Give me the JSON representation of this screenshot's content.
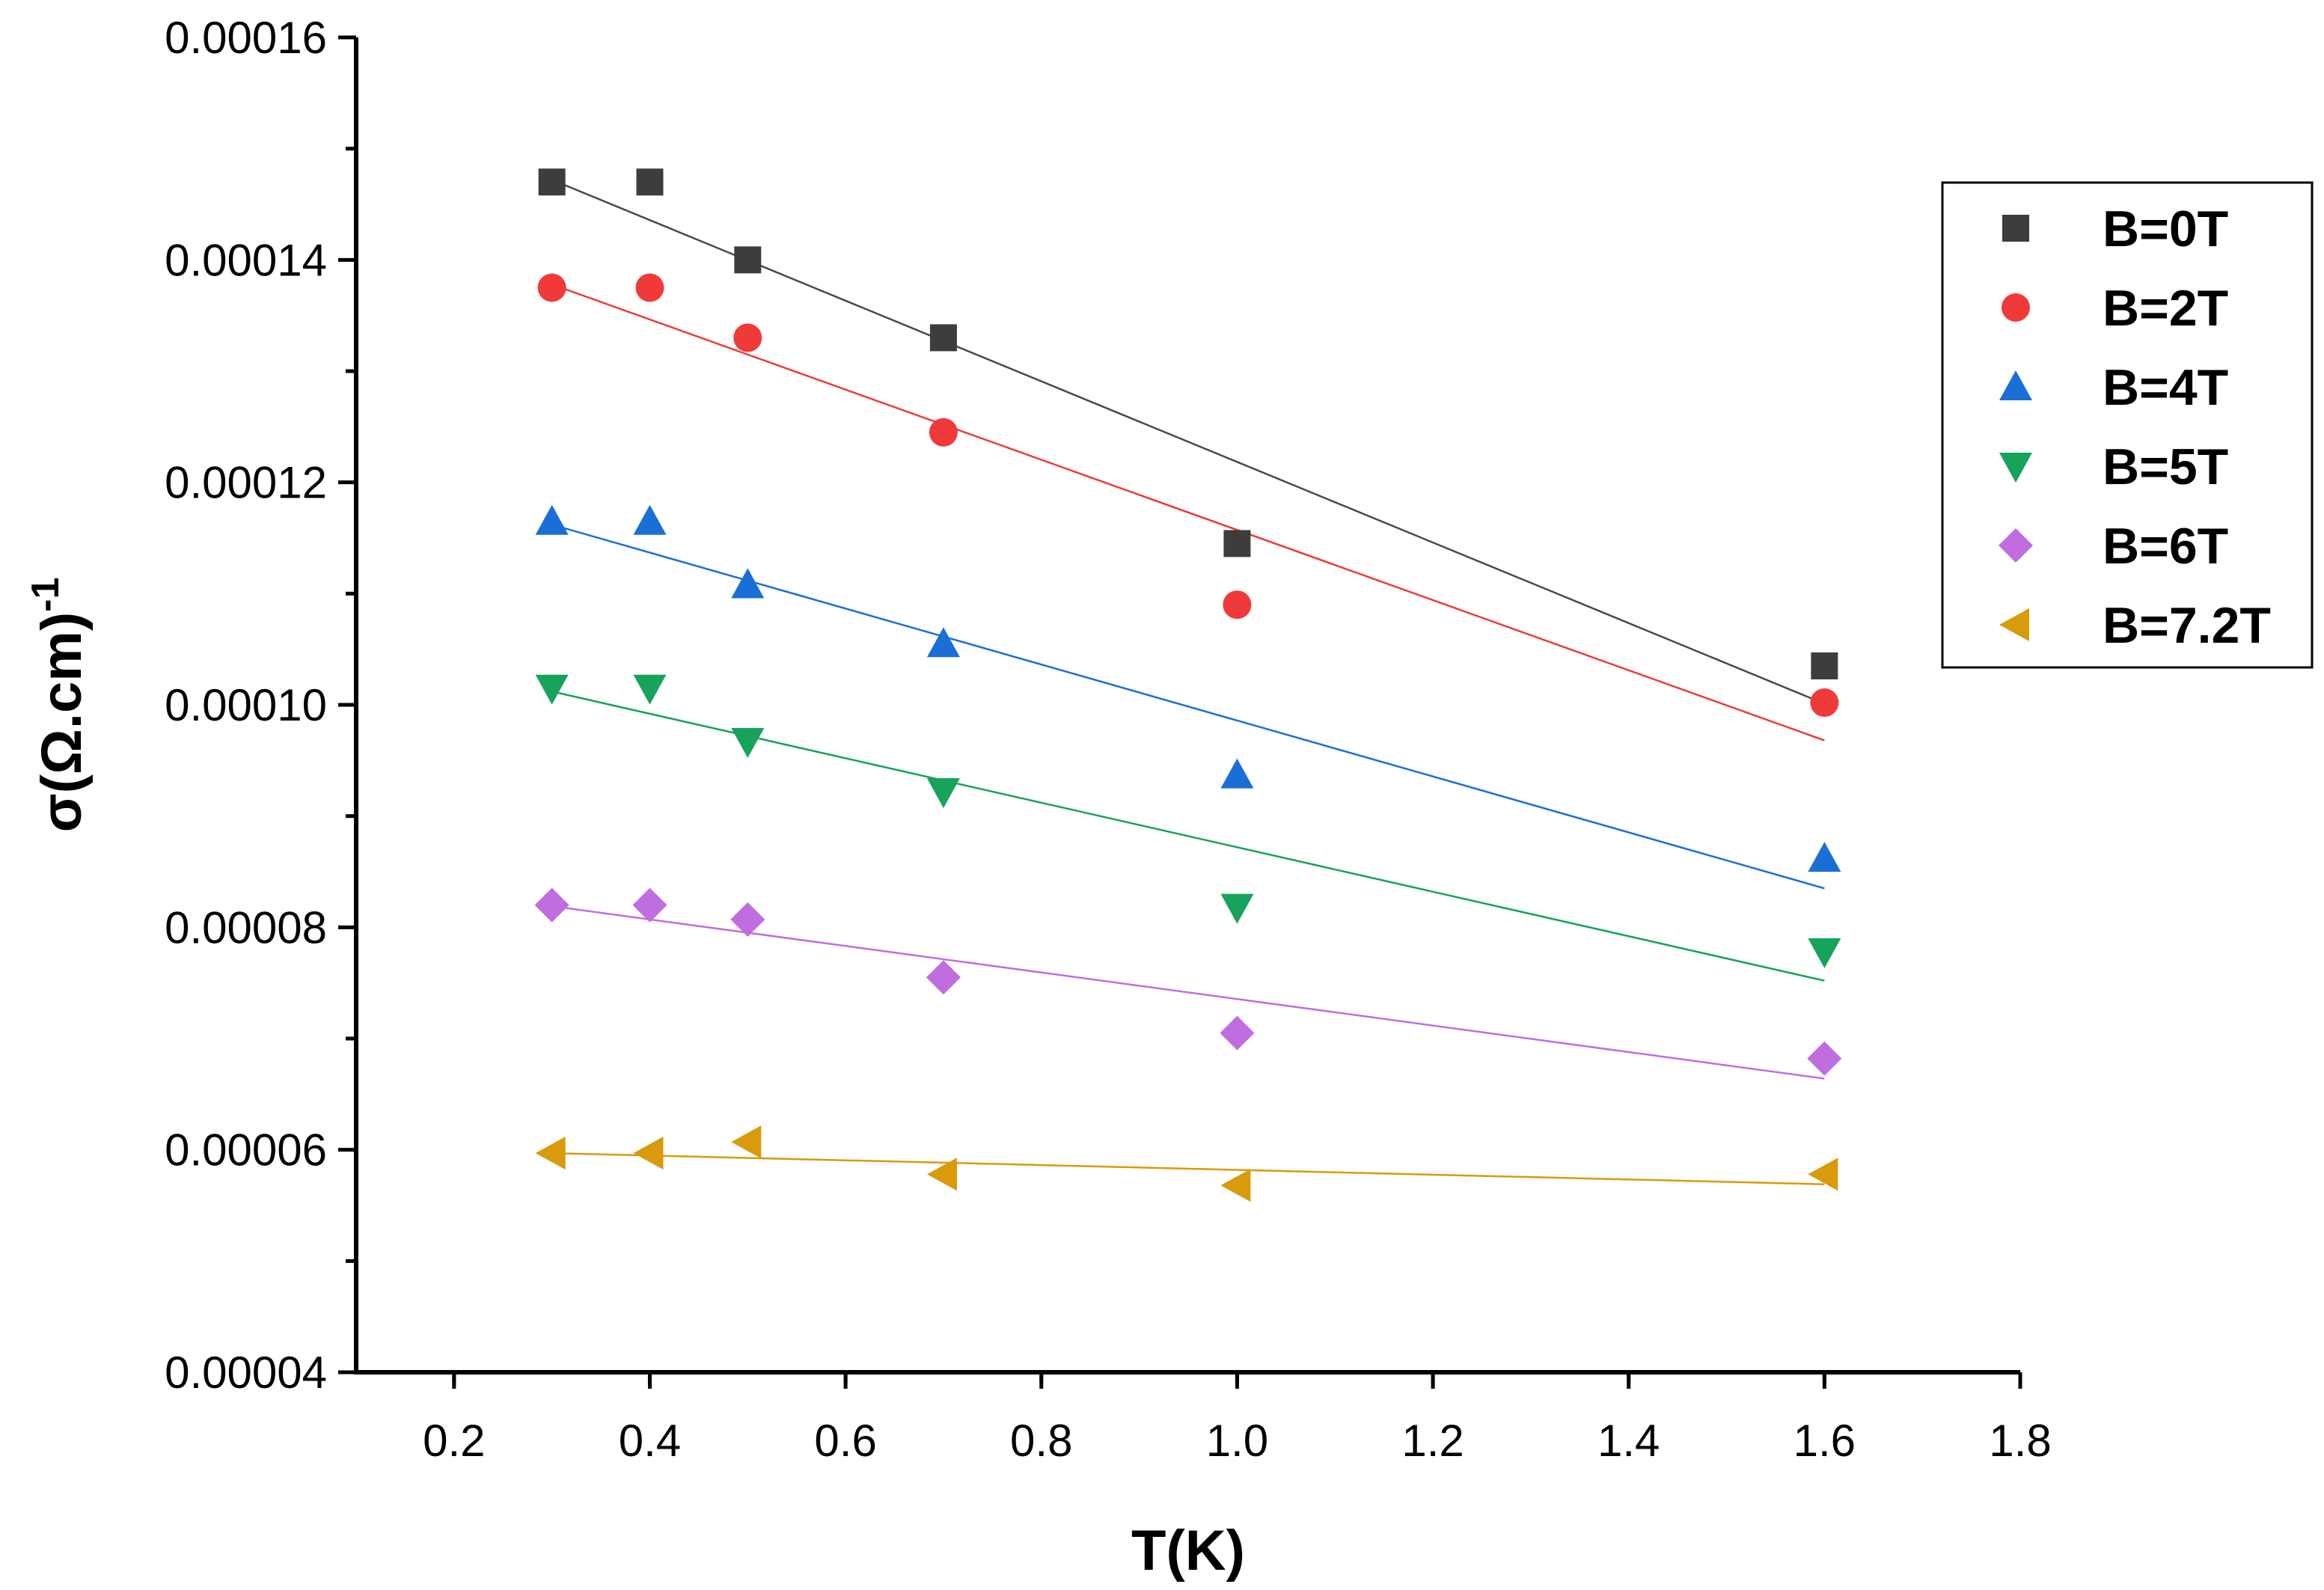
{
  "chart_data": {
    "type": "scatter",
    "title": "",
    "xlabel": "T(K)",
    "ylabel_main": "σ(Ω.cm)",
    "ylabel_sup": "-1",
    "xlim": [
      0.1,
      1.8
    ],
    "ylim": [
      4e-05,
      0.00016
    ],
    "x_ticks": [
      0.2,
      0.4,
      0.6,
      0.8,
      1.0,
      1.2,
      1.4,
      1.6,
      1.8
    ],
    "x_tick_labels": [
      "0.2",
      "0.4",
      "0.6",
      "0.8",
      "1.0",
      "1.2",
      "1.4",
      "1.6",
      "1.8"
    ],
    "y_ticks": [
      4e-05,
      6e-05,
      8e-05,
      0.0001,
      0.00012,
      0.00014,
      0.00016
    ],
    "y_tick_labels": [
      "0.00004",
      "0.00006",
      "0.00008",
      "0.00010",
      "0.00012",
      "0.00014",
      "0.00016"
    ],
    "legend_position": "top-right",
    "grid": false,
    "series": [
      {
        "name": "B=0T",
        "marker": "square",
        "color": "#3d3d3d",
        "line_color": "#4a4a4a",
        "x": [
          0.3,
          0.4,
          0.5,
          0.7,
          1.0,
          1.6
        ],
        "y": [
          0.000147,
          0.000147,
          0.00014,
          0.000133,
          0.0001145,
          0.0001035
        ],
        "fit": [
          [
            0.3,
            0.0001472
          ],
          [
            1.6,
            0.0001001
          ]
        ]
      },
      {
        "name": "B=2T",
        "marker": "circle",
        "color": "#f03a3a",
        "line_color": "#f03a3a",
        "x": [
          0.3,
          0.4,
          0.5,
          0.7,
          1.0,
          1.6
        ],
        "y": [
          0.0001375,
          0.0001375,
          0.000133,
          0.0001245,
          0.000109,
          0.0001002
        ],
        "fit": [
          [
            0.3,
            0.0001378
          ],
          [
            1.6,
            9.68e-05
          ]
        ]
      },
      {
        "name": "B=4T",
        "marker": "triangle-up",
        "color": "#1a6fd6",
        "line_color": "#1a6fd6",
        "x": [
          0.3,
          0.4,
          0.5,
          0.7,
          1.0,
          1.6
        ],
        "y": [
          0.0001165,
          0.0001165,
          0.0001108,
          0.0001055,
          9.37e-05,
          8.62e-05
        ],
        "fit": [
          [
            0.3,
            0.0001162
          ],
          [
            1.6,
            8.35e-05
          ]
        ]
      },
      {
        "name": "B=5T",
        "marker": "triangle-down",
        "color": "#16a35a",
        "line_color": "#16a35a",
        "x": [
          0.3,
          0.4,
          0.5,
          0.7,
          1.0,
          1.6
        ],
        "y": [
          0.0001015,
          0.0001015,
          9.67e-05,
          9.22e-05,
          8.18e-05,
          7.78e-05
        ],
        "fit": [
          [
            0.3,
            0.0001012
          ],
          [
            1.6,
            7.52e-05
          ]
        ]
      },
      {
        "name": "B=6T",
        "marker": "diamond",
        "color": "#c06de0",
        "line_color": "#c06de0",
        "x": [
          0.3,
          0.4,
          0.5,
          0.7,
          1.0,
          1.6
        ],
        "y": [
          8.2e-05,
          8.2e-05,
          8.07e-05,
          7.55e-05,
          7.05e-05,
          6.82e-05
        ],
        "fit": [
          [
            0.3,
            8.19e-05
          ],
          [
            1.6,
            6.64e-05
          ]
        ]
      },
      {
        "name": "B=7.2T",
        "marker": "triangle-left",
        "color": "#d99a0b",
        "line_color": "#d99a0b",
        "x": [
          0.3,
          0.4,
          0.5,
          0.7,
          1.0,
          1.6
        ],
        "y": [
          5.97e-05,
          5.97e-05,
          6.07e-05,
          5.78e-05,
          5.68e-05,
          5.78e-05
        ],
        "fit": [
          [
            0.3,
            5.97e-05
          ],
          [
            1.6,
            5.69e-05
          ]
        ]
      }
    ]
  }
}
